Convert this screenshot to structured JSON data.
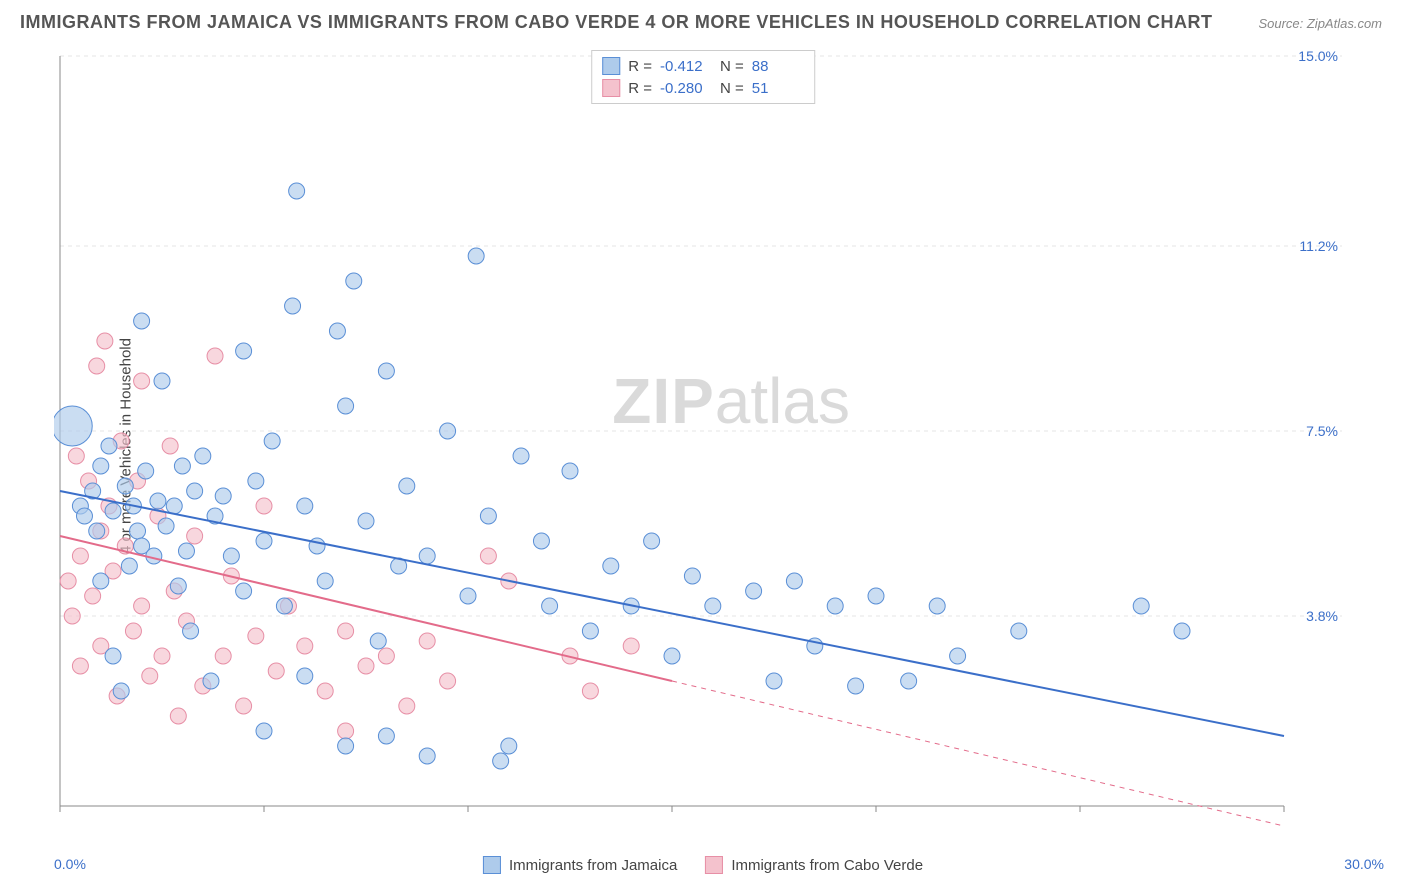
{
  "title": "IMMIGRANTS FROM JAMAICA VS IMMIGRANTS FROM CABO VERDE 4 OR MORE VEHICLES IN HOUSEHOLD CORRELATION CHART",
  "source": "Source: ZipAtlas.com",
  "y_axis_label": "4 or more Vehicles in Household",
  "watermark_zip": "ZIP",
  "watermark_atlas": "atlas",
  "chart": {
    "type": "scatter",
    "plot_background": "#ffffff",
    "grid_color": "#e5e5e5",
    "grid_dash": "4,4",
    "xlim": [
      0,
      30
    ],
    "ylim": [
      0,
      15
    ],
    "x_ticks_major": [
      0,
      15.3,
      30
    ],
    "x_tick_labels": {
      "0": "0.0%",
      "30": "30.0%"
    },
    "y_ticks": [
      3.8,
      7.5,
      11.2,
      15.0
    ],
    "y_tick_labels": [
      "3.8%",
      "7.5%",
      "11.2%",
      "15.0%"
    ],
    "tick_label_color": "#3b6fc9",
    "tick_label_fontsize": 14,
    "series": [
      {
        "name": "Immigrants from Jamaica",
        "color_fill": "#aecbeb",
        "color_stroke": "#5a8fd6",
        "marker_opacity": 0.65,
        "marker_r_base": 8,
        "R": -0.412,
        "N": 88,
        "trend": {
          "x1": 0,
          "y1": 6.3,
          "x2": 30,
          "y2": 1.4,
          "stroke": "#3b6fc9",
          "width": 2,
          "solid_until_x": 30
        },
        "points": [
          [
            0.3,
            7.6,
            20
          ],
          [
            0.5,
            6.0,
            8
          ],
          [
            0.6,
            5.8,
            8
          ],
          [
            0.8,
            6.3,
            8
          ],
          [
            0.9,
            5.5,
            8
          ],
          [
            1.0,
            6.8,
            8
          ],
          [
            1.0,
            4.5,
            8
          ],
          [
            1.2,
            7.2,
            8
          ],
          [
            1.3,
            5.9,
            8
          ],
          [
            1.3,
            3.0,
            8
          ],
          [
            1.5,
            2.3,
            8
          ],
          [
            1.6,
            6.4,
            8
          ],
          [
            1.7,
            4.8,
            8
          ],
          [
            1.8,
            6.0,
            8
          ],
          [
            1.9,
            5.5,
            8
          ],
          [
            2.0,
            5.2,
            8
          ],
          [
            2.0,
            9.7,
            8
          ],
          [
            2.1,
            6.7,
            8
          ],
          [
            2.3,
            5.0,
            8
          ],
          [
            2.4,
            6.1,
            8
          ],
          [
            2.5,
            8.5,
            8
          ],
          [
            2.6,
            5.6,
            8
          ],
          [
            2.8,
            6.0,
            8
          ],
          [
            2.9,
            4.4,
            8
          ],
          [
            3.0,
            6.8,
            8
          ],
          [
            3.1,
            5.1,
            8
          ],
          [
            3.2,
            3.5,
            8
          ],
          [
            3.3,
            6.3,
            8
          ],
          [
            3.5,
            7.0,
            8
          ],
          [
            3.7,
            2.5,
            8
          ],
          [
            3.8,
            5.8,
            8
          ],
          [
            4.0,
            6.2,
            8
          ],
          [
            4.2,
            5.0,
            8
          ],
          [
            4.5,
            4.3,
            8
          ],
          [
            4.5,
            9.1,
            8
          ],
          [
            4.8,
            6.5,
            8
          ],
          [
            5.0,
            5.3,
            8
          ],
          [
            5.0,
            1.5,
            8
          ],
          [
            5.2,
            7.3,
            8
          ],
          [
            5.5,
            4.0,
            8
          ],
          [
            5.7,
            10.0,
            8
          ],
          [
            5.8,
            12.3,
            8
          ],
          [
            6.0,
            6.0,
            8
          ],
          [
            6.0,
            2.6,
            8
          ],
          [
            6.3,
            5.2,
            8
          ],
          [
            6.5,
            4.5,
            8
          ],
          [
            6.8,
            9.5,
            8
          ],
          [
            7.0,
            8.0,
            8
          ],
          [
            7.0,
            1.2,
            8
          ],
          [
            7.2,
            10.5,
            8
          ],
          [
            7.5,
            5.7,
            8
          ],
          [
            7.8,
            3.3,
            8
          ],
          [
            8.0,
            8.7,
            8
          ],
          [
            8.0,
            1.4,
            8
          ],
          [
            8.3,
            4.8,
            8
          ],
          [
            8.5,
            6.4,
            8
          ],
          [
            9.0,
            5.0,
            8
          ],
          [
            9.0,
            1.0,
            8
          ],
          [
            9.5,
            7.5,
            8
          ],
          [
            10.0,
            4.2,
            8
          ],
          [
            10.2,
            11.0,
            8
          ],
          [
            10.5,
            5.8,
            8
          ],
          [
            10.8,
            0.9,
            8
          ],
          [
            11.0,
            1.2,
            8
          ],
          [
            11.3,
            7.0,
            8
          ],
          [
            11.8,
            5.3,
            8
          ],
          [
            12.0,
            4.0,
            8
          ],
          [
            12.5,
            6.7,
            8
          ],
          [
            13.0,
            3.5,
            8
          ],
          [
            13.5,
            4.8,
            8
          ],
          [
            14.0,
            4.0,
            8
          ],
          [
            14.5,
            5.3,
            8
          ],
          [
            15.0,
            3.0,
            8
          ],
          [
            15.5,
            4.6,
            8
          ],
          [
            16.0,
            4.0,
            8
          ],
          [
            17.0,
            4.3,
            8
          ],
          [
            17.5,
            2.5,
            8
          ],
          [
            18.0,
            4.5,
            8
          ],
          [
            18.5,
            3.2,
            8
          ],
          [
            19.0,
            4.0,
            8
          ],
          [
            19.5,
            2.4,
            8
          ],
          [
            20.0,
            4.2,
            8
          ],
          [
            20.8,
            2.5,
            8
          ],
          [
            21.5,
            4.0,
            8
          ],
          [
            22.0,
            3.0,
            8
          ],
          [
            23.5,
            3.5,
            8
          ],
          [
            26.5,
            4.0,
            8
          ],
          [
            27.5,
            3.5,
            8
          ]
        ]
      },
      {
        "name": "Immigrants from Cabo Verde",
        "color_fill": "#f4c2cd",
        "color_stroke": "#e78fa6",
        "marker_opacity": 0.65,
        "marker_r_base": 8,
        "R": -0.28,
        "N": 51,
        "trend": {
          "x1": 0,
          "y1": 5.4,
          "x2": 30,
          "y2": -0.4,
          "stroke": "#e36b8a",
          "width": 2,
          "solid_until_x": 15
        },
        "points": [
          [
            0.2,
            4.5,
            8
          ],
          [
            0.3,
            3.8,
            8
          ],
          [
            0.4,
            7.0,
            8
          ],
          [
            0.5,
            5.0,
            8
          ],
          [
            0.5,
            2.8,
            8
          ],
          [
            0.7,
            6.5,
            8
          ],
          [
            0.8,
            4.2,
            8
          ],
          [
            0.9,
            8.8,
            8
          ],
          [
            1.0,
            5.5,
            8
          ],
          [
            1.0,
            3.2,
            8
          ],
          [
            1.1,
            9.3,
            8
          ],
          [
            1.2,
            6.0,
            8
          ],
          [
            1.3,
            4.7,
            8
          ],
          [
            1.4,
            2.2,
            8
          ],
          [
            1.5,
            7.3,
            8
          ],
          [
            1.6,
            5.2,
            8
          ],
          [
            1.8,
            3.5,
            8
          ],
          [
            1.9,
            6.5,
            8
          ],
          [
            2.0,
            8.5,
            8
          ],
          [
            2.0,
            4.0,
            8
          ],
          [
            2.2,
            2.6,
            8
          ],
          [
            2.4,
            5.8,
            8
          ],
          [
            2.5,
            3.0,
            8
          ],
          [
            2.7,
            7.2,
            8
          ],
          [
            2.8,
            4.3,
            8
          ],
          [
            2.9,
            1.8,
            8
          ],
          [
            3.1,
            3.7,
            8
          ],
          [
            3.3,
            5.4,
            8
          ],
          [
            3.5,
            2.4,
            8
          ],
          [
            3.8,
            9.0,
            8
          ],
          [
            4.0,
            3.0,
            8
          ],
          [
            4.2,
            4.6,
            8
          ],
          [
            4.5,
            2.0,
            8
          ],
          [
            4.8,
            3.4,
            8
          ],
          [
            5.0,
            6.0,
            8
          ],
          [
            5.3,
            2.7,
            8
          ],
          [
            5.6,
            4.0,
            8
          ],
          [
            6.0,
            3.2,
            8
          ],
          [
            6.5,
            2.3,
            8
          ],
          [
            7.0,
            3.5,
            8
          ],
          [
            7.0,
            1.5,
            8
          ],
          [
            7.5,
            2.8,
            8
          ],
          [
            8.0,
            3.0,
            8
          ],
          [
            8.5,
            2.0,
            8
          ],
          [
            9.0,
            3.3,
            8
          ],
          [
            9.5,
            2.5,
            8
          ],
          [
            10.5,
            5.0,
            8
          ],
          [
            11.0,
            4.5,
            8
          ],
          [
            12.5,
            3.0,
            8
          ],
          [
            13.0,
            2.3,
            8
          ],
          [
            14.0,
            3.2,
            8
          ]
        ]
      }
    ]
  },
  "legend_top": {
    "rows": [
      {
        "swatch": "blue",
        "r_label": "R =",
        "r_val": "-0.412",
        "n_label": "N =",
        "n_val": "88"
      },
      {
        "swatch": "pink",
        "r_label": "R =",
        "r_val": "-0.280",
        "n_label": "N =",
        "n_val": "51"
      }
    ]
  },
  "legend_bottom": [
    {
      "swatch": "blue",
      "label": "Immigrants from Jamaica"
    },
    {
      "swatch": "pink",
      "label": "Immigrants from Cabo Verde"
    }
  ]
}
